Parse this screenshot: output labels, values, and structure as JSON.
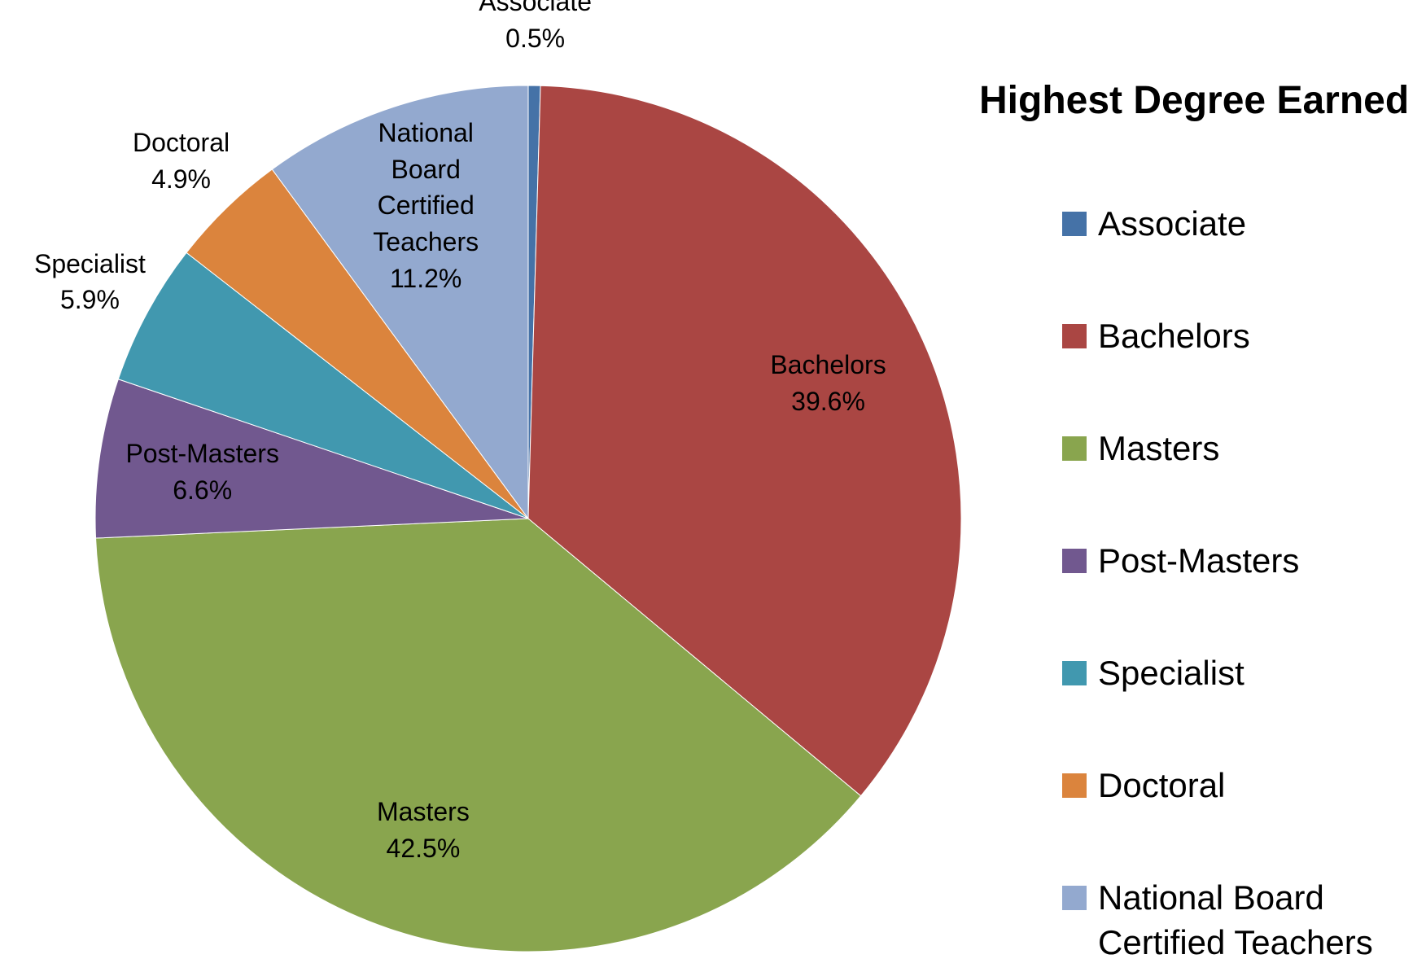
{
  "chart_data": {
    "type": "pie",
    "title": "Highest Degree Earned",
    "categories": [
      "Associate",
      "Bachelors",
      "Masters",
      "Post-Masters",
      "Specialist",
      "Doctoral",
      "National Board Certified Teachers"
    ],
    "values": [
      0.5,
      39.6,
      42.5,
      6.6,
      5.9,
      4.9,
      11.2
    ],
    "value_labels": [
      "0.5%",
      "39.6%",
      "42.5%",
      "6.6%",
      "5.9%",
      "4.9%",
      "11.2%"
    ],
    "colors": [
      "#4572a7",
      "#aa4643",
      "#89a54e",
      "#71588f",
      "#4198af",
      "#db843d",
      "#93a9cf"
    ],
    "legend": "right"
  }
}
